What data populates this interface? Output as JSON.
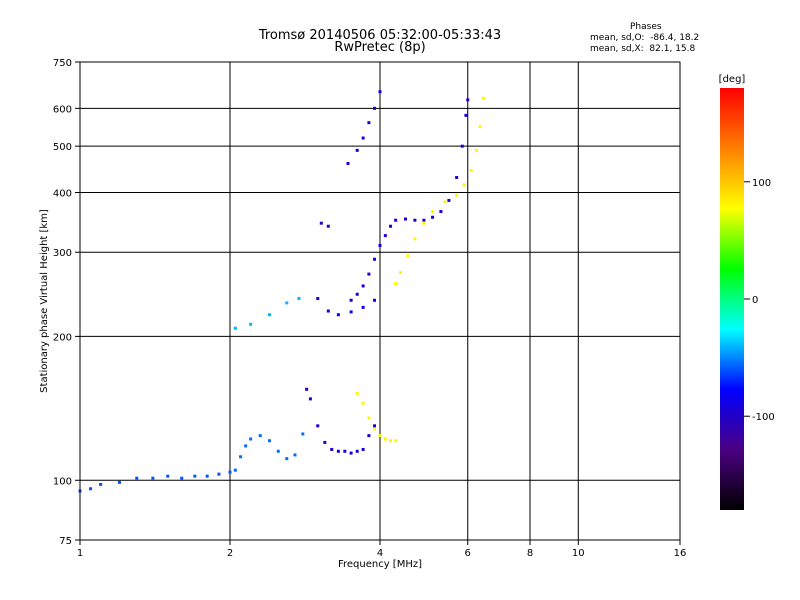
{
  "chart_data": {
    "type": "scatter",
    "title": "Tromsø 20140506 05:32:00-05:33:43",
    "subtitle": "RwPretec (8p)",
    "xlabel": "Frequency [MHz]",
    "ylabel": "Stationary phase Virtual Height [km]",
    "x_scale": "log",
    "y_scale": "log",
    "xlim": [
      1,
      16
    ],
    "ylim": [
      75,
      750
    ],
    "x_ticks": [
      "1",
      "2",
      "4",
      "6",
      "8",
      "10",
      "16"
    ],
    "x_tick_values": [
      1,
      2,
      4,
      6,
      8,
      10,
      16
    ],
    "y_ticks": [
      "75",
      "100",
      "200",
      "300",
      "400",
      "500",
      "600",
      "750"
    ],
    "y_tick_values": [
      75,
      100,
      200,
      300,
      400,
      500,
      600,
      750
    ],
    "grid": true,
    "phases": {
      "title": "Phases",
      "line_o": "mean, sd,O:  -86.4, 18.2",
      "line_x": "mean, sd,X:  82.1, 15.8"
    },
    "colorbar": {
      "label": "[deg]",
      "range": [
        -180,
        180
      ],
      "ticks": [
        "100",
        "0",
        "-100"
      ],
      "tick_values": [
        100,
        0,
        -100
      ],
      "colors": [
        "#000000",
        "#4b0082",
        "#0000ff",
        "#00ffff",
        "#00ff00",
        "#ffff00",
        "#ff7f00",
        "#ff0000"
      ]
    },
    "series": [
      {
        "values": [
          [
            1.0,
            95
          ],
          [
            1.05,
            96
          ],
          [
            1.1,
            98
          ],
          [
            1.2,
            99
          ],
          [
            1.3,
            101
          ],
          [
            1.4,
            101
          ],
          [
            1.5,
            102
          ],
          [
            1.6,
            101
          ],
          [
            1.7,
            102
          ],
          [
            1.8,
            102
          ],
          [
            1.9,
            103
          ],
          [
            2.0,
            104
          ]
        ],
        "phase": -60
      },
      {
        "values": [
          [
            2.05,
            105
          ],
          [
            2.1,
            112
          ],
          [
            2.15,
            118
          ],
          [
            2.2,
            122
          ],
          [
            2.3,
            124
          ],
          [
            2.4,
            121
          ],
          [
            2.5,
            115
          ],
          [
            2.6,
            111
          ],
          [
            2.7,
            113
          ],
          [
            2.8,
            125
          ]
        ],
        "phase": -55
      },
      {
        "values": [
          [
            2.85,
            155
          ],
          [
            2.9,
            148
          ],
          [
            3.0,
            130
          ],
          [
            3.1,
            120
          ],
          [
            3.2,
            116
          ],
          [
            3.3,
            115
          ],
          [
            3.4,
            115
          ],
          [
            3.5,
            114
          ],
          [
            3.6,
            115
          ],
          [
            3.7,
            116
          ],
          [
            3.8,
            124
          ],
          [
            3.9,
            130
          ]
        ],
        "phase": -95
      },
      {
        "values": [
          [
            3.6,
            152
          ],
          [
            3.7,
            145
          ],
          [
            3.8,
            135
          ],
          [
            3.9,
            128
          ],
          [
            4.0,
            124
          ],
          [
            4.1,
            122
          ],
          [
            4.2,
            121
          ],
          [
            4.3,
            121
          ]
        ],
        "phase": 80
      },
      {
        "values": [
          [
            2.05,
            208
          ],
          [
            2.2,
            212
          ],
          [
            2.4,
            222
          ],
          [
            2.6,
            235
          ],
          [
            2.75,
            240
          ]
        ],
        "phase": -40
      },
      {
        "values": [
          [
            3.0,
            240
          ],
          [
            3.15,
            226
          ],
          [
            3.3,
            222
          ],
          [
            3.5,
            225
          ],
          [
            3.7,
            230
          ],
          [
            3.9,
            238
          ]
        ],
        "phase": -85
      },
      {
        "values": [
          [
            3.5,
            238
          ],
          [
            3.6,
            245
          ],
          [
            3.7,
            255
          ],
          [
            3.8,
            270
          ],
          [
            3.9,
            290
          ],
          [
            4.0,
            310
          ],
          [
            4.1,
            325
          ],
          [
            4.2,
            340
          ],
          [
            4.3,
            350
          ],
          [
            4.5,
            352
          ],
          [
            4.7,
            350
          ],
          [
            4.9,
            350
          ],
          [
            5.1,
            355
          ],
          [
            5.3,
            365
          ],
          [
            5.5,
            385
          ],
          [
            5.7,
            430
          ],
          [
            5.85,
            500
          ],
          [
            5.95,
            580
          ],
          [
            6.0,
            625
          ]
        ],
        "phase": -95
      },
      {
        "values": [
          [
            4.3,
            258
          ],
          [
            4.4,
            272
          ],
          [
            4.55,
            295
          ],
          [
            4.7,
            320
          ],
          [
            4.9,
            345
          ],
          [
            5.1,
            365
          ],
          [
            5.4,
            382
          ],
          [
            5.7,
            395
          ],
          [
            5.9,
            415
          ],
          [
            6.1,
            445
          ],
          [
            6.25,
            490
          ],
          [
            6.35,
            550
          ],
          [
            6.45,
            630
          ]
        ],
        "phase": 80
      },
      {
        "values": [
          [
            3.45,
            460
          ],
          [
            3.6,
            490
          ],
          [
            3.7,
            520
          ],
          [
            3.8,
            560
          ],
          [
            3.9,
            600
          ],
          [
            4.0,
            650
          ]
        ],
        "phase": -95
      },
      {
        "values": [
          [
            3.05,
            345
          ],
          [
            3.15,
            340
          ]
        ],
        "phase": -100
      }
    ]
  }
}
